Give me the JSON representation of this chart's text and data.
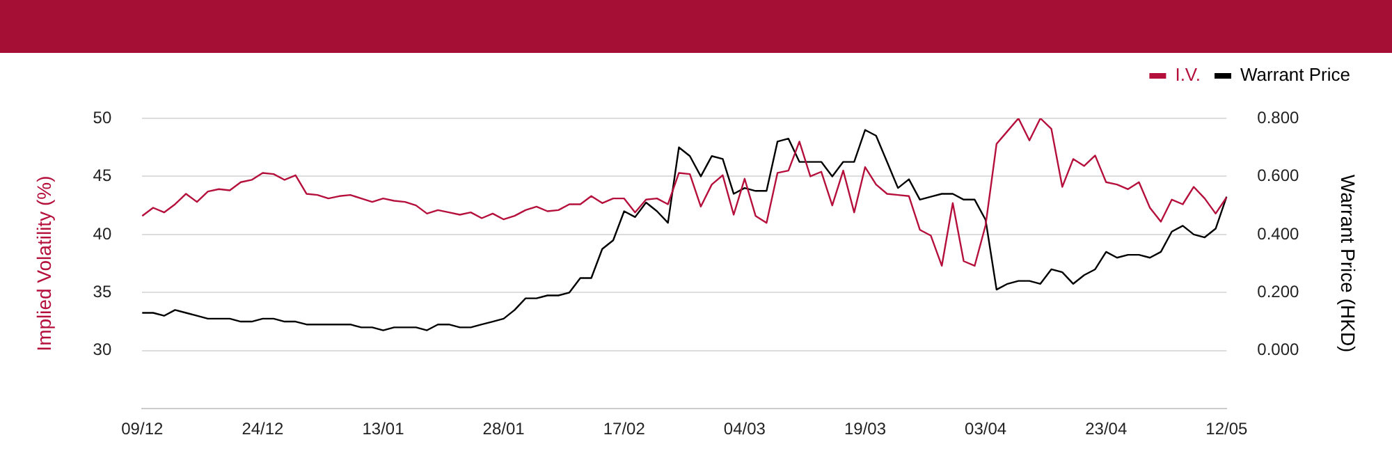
{
  "chart_data": {
    "type": "line",
    "categories": [
      "09/12",
      null,
      null,
      null,
      null,
      null,
      null,
      null,
      null,
      null,
      null,
      "24/12",
      null,
      null,
      null,
      null,
      null,
      null,
      null,
      null,
      null,
      null,
      "13/01",
      null,
      null,
      null,
      null,
      null,
      null,
      null,
      null,
      null,
      null,
      "28/01",
      null,
      null,
      null,
      null,
      null,
      null,
      null,
      null,
      null,
      null,
      "17/02",
      null,
      null,
      null,
      null,
      null,
      null,
      null,
      null,
      null,
      null,
      "04/03",
      null,
      null,
      null,
      null,
      null,
      null,
      null,
      null,
      null,
      null,
      "19/03",
      null,
      null,
      null,
      null,
      null,
      null,
      null,
      null,
      null,
      null,
      "03/04",
      null,
      null,
      null,
      null,
      null,
      null,
      null,
      null,
      null,
      null,
      "23/04",
      null,
      null,
      null,
      null,
      null,
      null,
      null,
      null,
      null,
      null,
      "12/05"
    ],
    "series": [
      {
        "name": "I.V.",
        "color": "#b5103c",
        "axis": "y",
        "values": [
          41.6,
          42.3,
          41.9,
          42.6,
          43.5,
          42.8,
          43.7,
          43.9,
          43.8,
          44.5,
          44.7,
          45.3,
          45.2,
          44.7,
          45.1,
          43.5,
          43.4,
          43.1,
          43.3,
          43.4,
          43.1,
          42.8,
          43.1,
          42.9,
          42.8,
          42.5,
          41.8,
          42.1,
          41.9,
          41.7,
          41.9,
          41.4,
          41.8,
          41.3,
          41.6,
          42.1,
          42.4,
          42.0,
          42.1,
          42.6,
          42.6,
          43.3,
          42.7,
          43.1,
          43.1,
          41.9,
          43.0,
          43.1,
          42.6,
          45.3,
          45.2,
          42.4,
          44.3,
          45.1,
          41.7,
          44.8,
          41.6,
          41.0,
          45.3,
          45.5,
          48.0,
          45.0,
          45.4,
          42.5,
          45.5,
          41.9,
          45.8,
          44.3,
          43.5,
          43.4,
          43.3,
          40.4,
          39.9,
          37.3,
          42.7,
          37.7,
          37.3,
          40.8,
          47.8,
          48.9,
          50.0,
          48.1,
          50.0,
          49.1,
          44.1,
          46.5,
          45.9,
          46.8,
          44.5,
          44.3,
          43.9,
          44.5,
          42.3,
          41.1,
          43.0,
          42.6,
          44.1,
          43.1,
          41.8,
          43.2
        ]
      },
      {
        "name": "Warrant Price",
        "color": "#000000",
        "axis": "y2",
        "values": [
          0.13,
          0.13,
          0.12,
          0.14,
          0.13,
          0.12,
          0.11,
          0.11,
          0.11,
          0.1,
          0.1,
          0.11,
          0.11,
          0.1,
          0.1,
          0.09,
          0.09,
          0.09,
          0.09,
          0.09,
          0.08,
          0.08,
          0.07,
          0.08,
          0.08,
          0.08,
          0.07,
          0.09,
          0.09,
          0.08,
          0.08,
          0.09,
          0.1,
          0.11,
          0.14,
          0.18,
          0.18,
          0.19,
          0.19,
          0.2,
          0.25,
          0.25,
          0.35,
          0.38,
          0.48,
          0.46,
          0.51,
          0.48,
          0.44,
          0.7,
          0.67,
          0.6,
          0.67,
          0.66,
          0.54,
          0.56,
          0.55,
          0.55,
          0.72,
          0.73,
          0.65,
          0.65,
          0.65,
          0.6,
          0.65,
          0.65,
          0.76,
          0.74,
          0.65,
          0.56,
          0.59,
          0.52,
          0.53,
          0.54,
          0.54,
          0.52,
          0.52,
          0.45,
          0.21,
          0.23,
          0.24,
          0.24,
          0.23,
          0.28,
          0.27,
          0.23,
          0.26,
          0.28,
          0.34,
          0.32,
          0.33,
          0.33,
          0.32,
          0.34,
          0.41,
          0.43,
          0.4,
          0.39,
          0.42,
          0.53
        ]
      }
    ],
    "ylabel": "Implied Volatility (%)",
    "y2label": "Warrant Price (HKD)",
    "ylim": [
      25,
      50
    ],
    "yticks": [
      30,
      35,
      40,
      45,
      50
    ],
    "y2lim": [
      -0.2,
      0.8
    ],
    "y2ticks": [
      {
        "value": 0,
        "label": "0.000"
      },
      {
        "value": 0.2,
        "label": "0.200"
      },
      {
        "value": 0.4,
        "label": "0.400"
      },
      {
        "value": 0.6,
        "label": "0.600"
      },
      {
        "value": 0.8,
        "label": "0.800"
      }
    ],
    "grid": "y",
    "legend": "top right",
    "marker": "none",
    "line_style": "solid"
  }
}
